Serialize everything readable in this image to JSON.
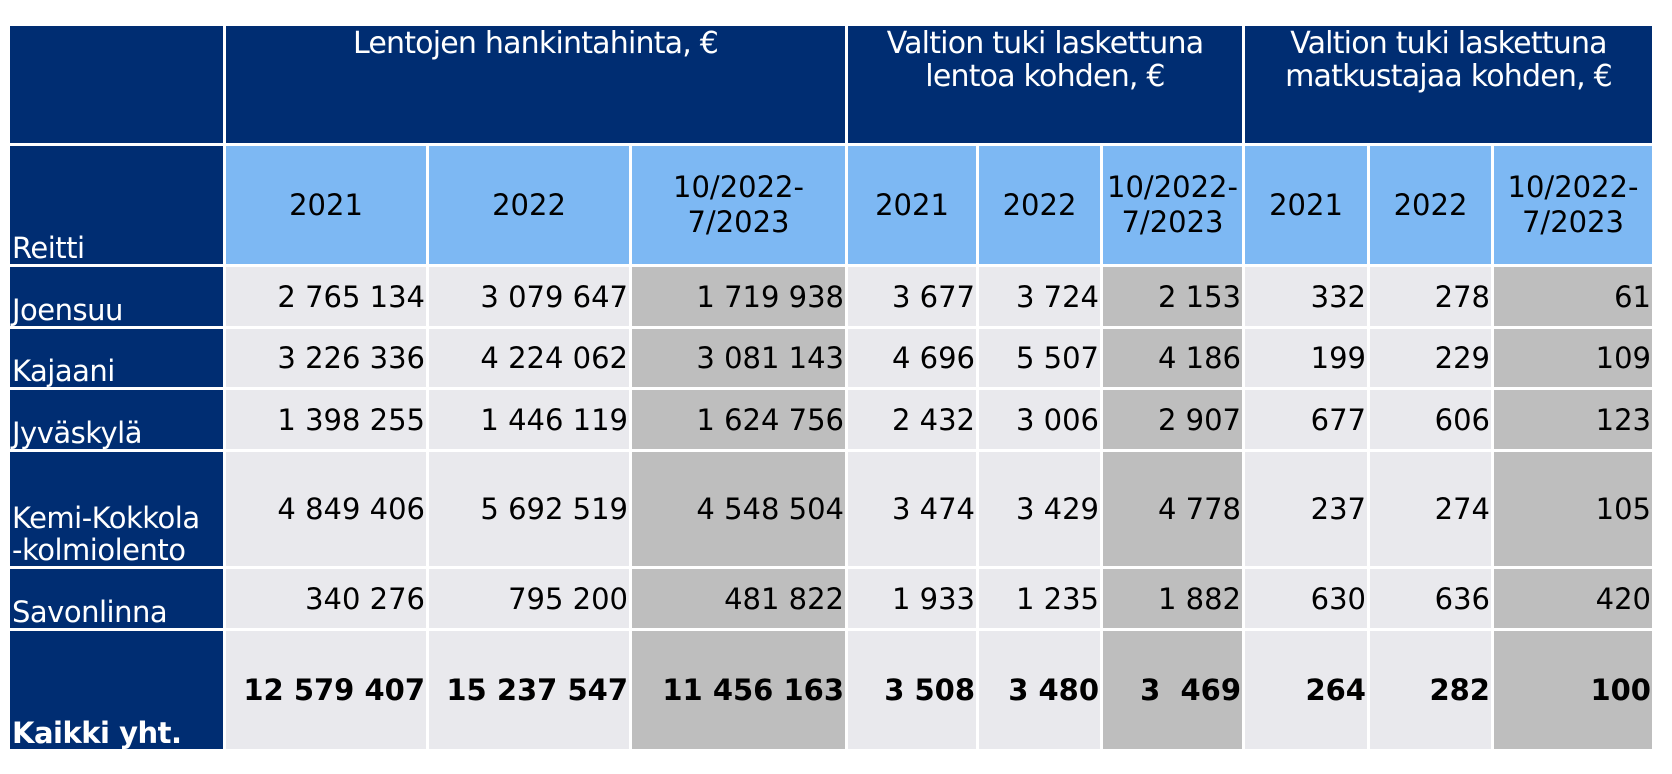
{
  "chart_data": {
    "type": "table",
    "row_header": "Reitti",
    "column_groups": [
      {
        "title": "Lentojen hankintahinta, €",
        "periods": [
          "2021",
          "2022",
          "10/2022-7/2023"
        ]
      },
      {
        "title": "Valtion tuki laskettuna lentoa kohden, €",
        "periods": [
          "2021",
          "2022",
          "10/2022-7/2023"
        ]
      },
      {
        "title": "Valtion tuki laskettuna matkustajaa kohden, €",
        "periods": [
          "2021",
          "2022",
          "10/2022-7/2023"
        ]
      }
    ],
    "rows": [
      {
        "route": "Joensuu",
        "values": [
          2765134,
          3079647,
          1719938,
          3677,
          3724,
          2153,
          332,
          278,
          61
        ]
      },
      {
        "route": "Kajaani",
        "values": [
          3226336,
          4224062,
          3081143,
          4696,
          5507,
          4186,
          199,
          229,
          109
        ]
      },
      {
        "route": "Jyväskylä",
        "values": [
          1398255,
          1446119,
          1624756,
          2432,
          3006,
          2907,
          677,
          606,
          123
        ]
      },
      {
        "route": "Kemi-Kokkola-kolmiolento",
        "values": [
          4849406,
          5692519,
          4548504,
          3474,
          3429,
          4778,
          237,
          274,
          105
        ]
      },
      {
        "route": "Savonlinna",
        "values": [
          340276,
          795200,
          481822,
          1933,
          1235,
          1882,
          630,
          636,
          420
        ]
      }
    ],
    "total_row": {
      "route": "Kaikki yht.",
      "values": [
        12579407,
        15237547,
        11456163,
        3508,
        3480,
        3469,
        264,
        282,
        100
      ]
    }
  },
  "display": {
    "row_header": "Reitti",
    "group_titles": [
      "Lentojen hankintahinta, €",
      "Valtion tuki laskettuna\nlentoa kohden, €",
      "Valtion tuki laskettuna\nmatkustajaa kohden, €"
    ],
    "periods": [
      "2021",
      "2022",
      "10/2022-\n7/2023"
    ],
    "rows": [
      {
        "route": "Joensuu",
        "cells": [
          "2 765 134",
          "3 079 647",
          "1 719 938",
          "3 677",
          "3 724",
          "2 153",
          "332",
          "278",
          "61"
        ]
      },
      {
        "route": "Kajaani",
        "cells": [
          "3 226 336",
          "4 224 062",
          "3 081 143",
          "4 696",
          "5 507",
          "4 186",
          "199",
          "229",
          "109"
        ]
      },
      {
        "route": "Jyväskylä",
        "cells": [
          "1 398 255",
          "1 446 119",
          "1 624 756",
          "2 432",
          "3 006",
          "2 907",
          "677",
          "606",
          "123"
        ]
      },
      {
        "route": "Kemi-Kokkola\n-kolmiolento",
        "cells": [
          "4 849 406",
          "5 692 519",
          "4 548 504",
          "3 474",
          "3 429",
          "4 778",
          "237",
          "274",
          "105"
        ]
      },
      {
        "route": "Savonlinna",
        "cells": [
          "340 276",
          "795 200",
          "481 822",
          "1 933",
          "1 235",
          "1 882",
          "630",
          "636",
          "420"
        ]
      }
    ],
    "total": {
      "route": "Kaikki yht.",
      "cells": [
        "12 579 407",
        "15 237 547",
        "11 456 163",
        "3 508",
        "3 480",
        "3  469",
        "264",
        "282",
        "100"
      ]
    }
  },
  "colors": {
    "header_navy": "#002D72",
    "period_blue": "#7DB8F3",
    "cell_light": "#E9E9ED",
    "cell_dark": "#BEBEBE",
    "grid_white": "#FFFFFF",
    "page_bg": "#FFFFFF",
    "text_dark": "#000000",
    "text_light": "#FFFFFF"
  }
}
